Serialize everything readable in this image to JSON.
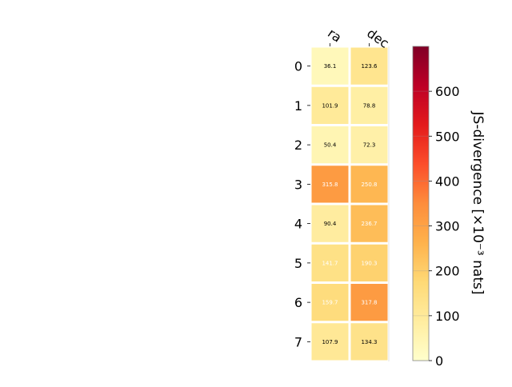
{
  "chart_data": {
    "type": "heatmap",
    "columns": [
      "ra",
      "dec"
    ],
    "rows": [
      "0",
      "1",
      "2",
      "3",
      "4",
      "5",
      "6",
      "7"
    ],
    "values": [
      [
        36.1,
        123.6
      ],
      [
        101.9,
        78.8
      ],
      [
        50.4,
        72.3
      ],
      [
        315.8,
        250.8
      ],
      [
        90.4,
        236.7
      ],
      [
        141.7,
        190.3
      ],
      [
        159.7,
        317.8
      ],
      [
        107.9,
        134.3
      ]
    ],
    "colorbar": {
      "label": "JS-divergence [×10⁻³ nats]",
      "range": [
        0,
        700
      ],
      "ticks": [
        0,
        100,
        200,
        300,
        400,
        500,
        600
      ],
      "colormap": "YlOrRd"
    }
  }
}
